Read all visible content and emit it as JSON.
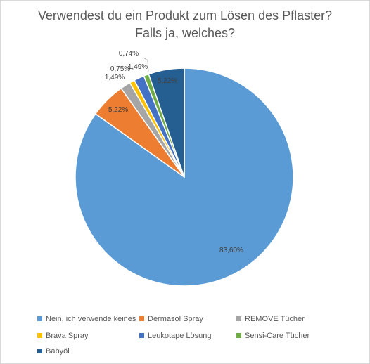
{
  "chart_data": {
    "type": "pie",
    "title_lines": [
      "Verwendest du ein  Produkt zum Lösen des Pflaster?",
      "Falls ja, welches?"
    ],
    "slices": [
      {
        "label": "Nein, ich verwende keines",
        "value": 83.6,
        "value_label": "83,60%",
        "color": "#5b9bd5"
      },
      {
        "label": "Dermasol Spray",
        "value": 5.22,
        "value_label": "5,22%",
        "color": "#ed7d31"
      },
      {
        "label": "REMOVE Tücher",
        "value": 1.49,
        "value_label": "1,49%",
        "color": "#a5a5a5"
      },
      {
        "label": "Brava Spray",
        "value": 0.75,
        "value_label": "0,75%",
        "color": "#ffc000"
      },
      {
        "label": "Leukotape Lösung",
        "value": 1.49,
        "value_label": "1,49%",
        "color": "#4472c4"
      },
      {
        "label": "Sensi-Care Tücher",
        "value": 0.74,
        "value_label": "0,74%",
        "color": "#70ad47"
      },
      {
        "label": "Babyöl",
        "value": 5.22,
        "value_label": "5,22%",
        "color": "#255e91"
      }
    ],
    "legend_position": "bottom"
  }
}
